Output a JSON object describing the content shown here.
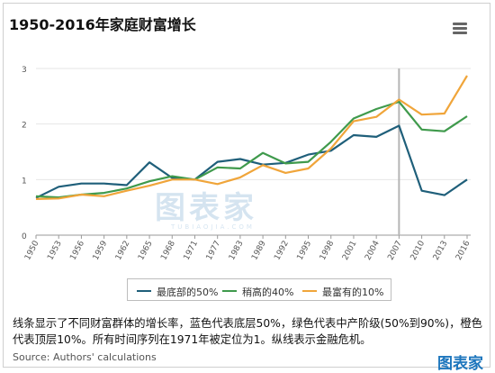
{
  "header": {
    "title": "1950-2016年家庭财富增长",
    "menu_icon": "hamburger-menu-icon"
  },
  "chart_data": {
    "type": "line",
    "title": "1950-2016年家庭财富增长",
    "xlabel": "",
    "ylabel": "",
    "ylim": [
      0,
      3
    ],
    "yticks": [
      0,
      1,
      2,
      3
    ],
    "grid": "horizontal",
    "legend_position": "bottom",
    "x": [
      "1950",
      "1953",
      "1956",
      "1959",
      "1962",
      "1965",
      "1968",
      "1971",
      "1977",
      "1983",
      "1989",
      "1992",
      "1995",
      "1998",
      "2001",
      "2004",
      "2007",
      "2010",
      "2013",
      "2016"
    ],
    "highlight_x": "2007",
    "series": [
      {
        "name": "最底部的50%",
        "color": "#1f5f7a",
        "values": [
          0.67,
          0.87,
          0.93,
          0.93,
          0.9,
          1.31,
          1.03,
          1.0,
          1.32,
          1.37,
          1.27,
          1.3,
          1.45,
          1.52,
          1.8,
          1.77,
          1.97,
          0.8,
          0.72,
          1.0
        ]
      },
      {
        "name": "稍高的40%",
        "color": "#3f9a4c",
        "values": [
          0.7,
          0.68,
          0.73,
          0.76,
          0.84,
          0.97,
          1.06,
          1.0,
          1.22,
          1.2,
          1.48,
          1.29,
          1.32,
          1.68,
          2.1,
          2.27,
          2.4,
          1.9,
          1.87,
          2.14
        ]
      },
      {
        "name": "最富有的10%",
        "color": "#f0a53a",
        "values": [
          0.65,
          0.66,
          0.73,
          0.7,
          0.8,
          0.89,
          1.0,
          1.0,
          0.92,
          1.04,
          1.26,
          1.12,
          1.2,
          1.56,
          2.05,
          2.13,
          2.44,
          2.17,
          2.19,
          2.87
        ]
      }
    ]
  },
  "legend": [
    {
      "label": "最底部的50%",
      "color": "#1f5f7a"
    },
    {
      "label": "稍高的40%",
      "color": "#3f9a4c"
    },
    {
      "label": "最富有的10%",
      "color": "#f0a53a"
    }
  ],
  "caption": "线条显示了不同财富群体的增长率，蓝色代表底层50%，绿色代表中产阶级(50%到90%)，橙色代表顶层10%。所有时间序列在1971年被定位为1。纵线表示金融危机。",
  "source": "Source: Authors' calculations",
  "watermark": {
    "main": "图表家",
    "sub": "TUBIAOJIA.COM"
  },
  "corner_logo": "图表家"
}
